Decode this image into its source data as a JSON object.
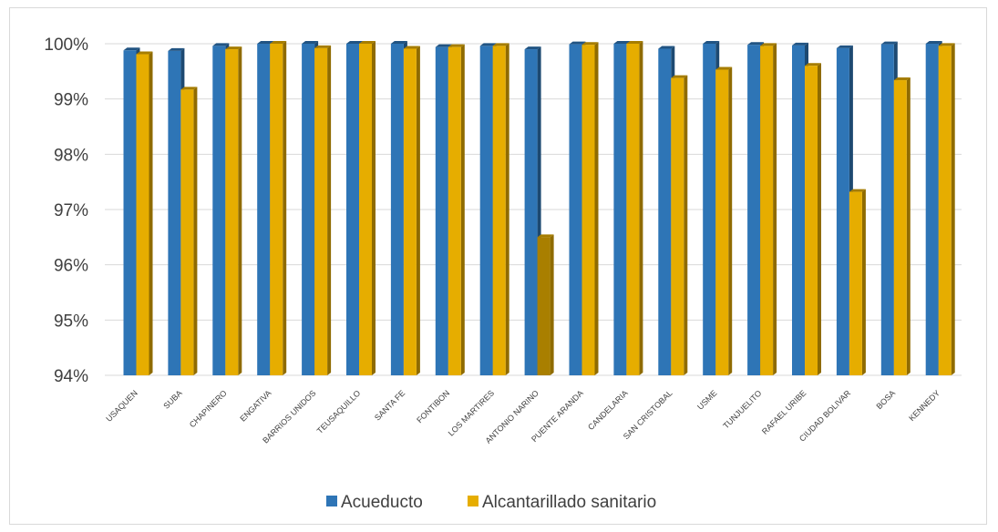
{
  "chart_data": {
    "type": "bar",
    "title": "",
    "xlabel": "",
    "ylabel": "",
    "ylim": [
      94,
      100
    ],
    "ytick_format": "%",
    "grid": true,
    "legend_position": "bottom",
    "categories": [
      "USAQUEN",
      "SUBA",
      "CHAPINERO",
      "ENGATIVA",
      "BARRIOS UNIDOS",
      "TEUSAQUILLO",
      "SANTA FE",
      "FONTIBON",
      "LOS MARTIRES",
      "ANTONIO NARINO",
      "PUENTE ARANDA",
      "CANDELARIA",
      "SAN CRISTOBAL",
      "USME",
      "TUNJUELITO",
      "RAFAEL URIBE",
      "CIUDAD BOLIVAR",
      "BOSA",
      "KENNEDY"
    ],
    "series": [
      {
        "name": "Acueducto",
        "color": "#2E75B6",
        "values": [
          99.88,
          99.87,
          99.96,
          100.0,
          100.0,
          100.0,
          100.0,
          99.94,
          99.96,
          99.9,
          99.99,
          100.0,
          99.91,
          100.0,
          99.98,
          99.97,
          99.92,
          99.99,
          100.0
        ]
      },
      {
        "name": "Alcantarillado  sanitario",
        "color": "#E6AD00",
        "values": [
          99.81,
          99.17,
          99.9,
          100.0,
          99.92,
          100.0,
          99.91,
          99.94,
          99.96,
          96.5,
          99.98,
          100.0,
          99.38,
          99.53,
          99.96,
          99.6,
          97.32,
          99.34,
          99.96
        ]
      }
    ],
    "yticks": [
      "94%",
      "95%",
      "96%",
      "97%",
      "98%",
      "99%",
      "100%"
    ]
  }
}
